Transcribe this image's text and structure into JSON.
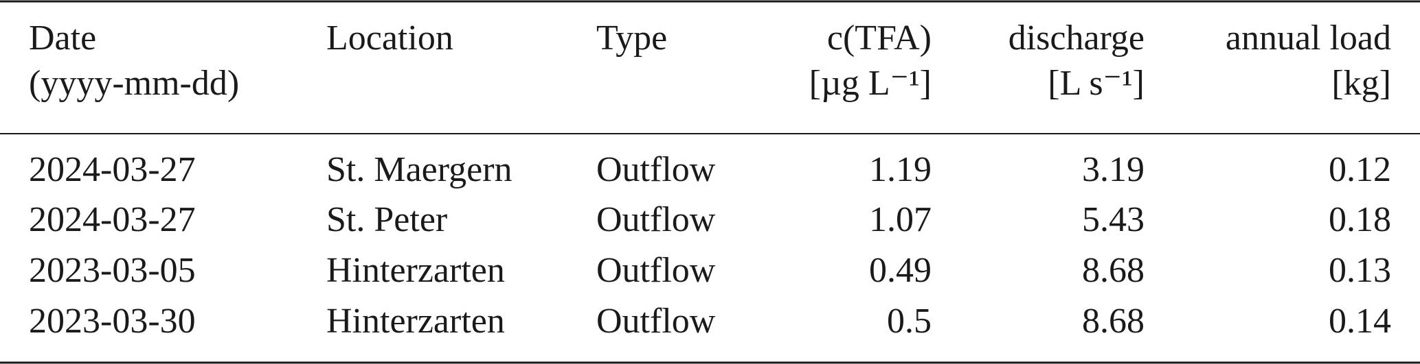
{
  "table": {
    "columns": [
      {
        "line1": "Date",
        "line2": "(yyyy-mm-dd)",
        "align": "left"
      },
      {
        "line1": "Location",
        "align": "left"
      },
      {
        "line1": "Type",
        "align": "left"
      },
      {
        "line1": "c(TFA)",
        "line2": "[µg L⁻¹]",
        "align": "right"
      },
      {
        "line1": "discharge",
        "line2": "[L s⁻¹]",
        "align": "right"
      },
      {
        "line1": "annual load",
        "line2": "[kg]",
        "align": "right"
      }
    ],
    "rows": [
      [
        "2024-03-27",
        "St. Maergern",
        "Outflow",
        "1.19",
        "3.19",
        "0.12"
      ],
      [
        "2024-03-27",
        "St. Peter",
        "Outflow",
        "1.07",
        "5.43",
        "0.18"
      ],
      [
        "2023-03-05",
        "Hinterzarten",
        "Outflow",
        "0.49",
        "8.68",
        "0.13"
      ],
      [
        "2023-03-30",
        "Hinterzarten",
        "Outflow",
        "0.5",
        "8.68",
        "0.14"
      ]
    ]
  }
}
